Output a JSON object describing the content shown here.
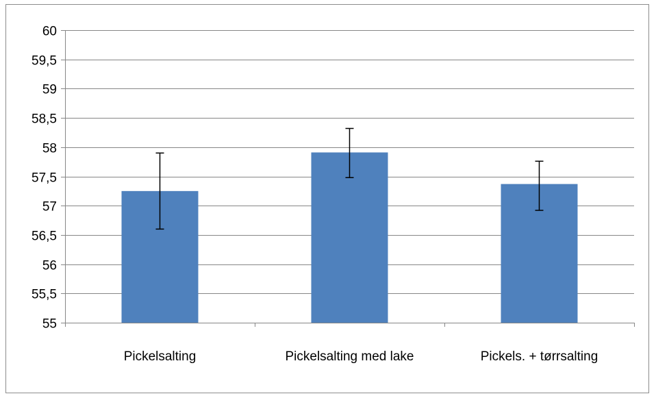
{
  "chart_data": {
    "type": "bar",
    "title": "",
    "xlabel": "",
    "ylabel": "",
    "categories": [
      "Pickelsalting",
      "Pickelsalting med lake",
      "Pickels. + tørrsalting"
    ],
    "values": [
      57.25,
      57.91,
      57.37
    ],
    "error_bars": [
      {
        "low": 56.6,
        "high": 57.9
      },
      {
        "low": 57.48,
        "high": 58.32
      },
      {
        "low": 56.92,
        "high": 57.76
      }
    ],
    "ylim": [
      55,
      60
    ],
    "yticks": [
      55,
      55.5,
      56,
      56.5,
      57,
      57.5,
      58,
      58.5,
      59,
      59.5,
      60
    ],
    "ytick_labels": [
      "55",
      "55,5",
      "56",
      "56,5",
      "57",
      "57,5",
      "58",
      "58,5",
      "59",
      "59,5",
      "60"
    ],
    "grid": true,
    "legend": "none",
    "colors": {
      "bar": "#4f81bd",
      "gridline": "#868686",
      "axis": "#868686",
      "error_bar": "#000000"
    }
  }
}
